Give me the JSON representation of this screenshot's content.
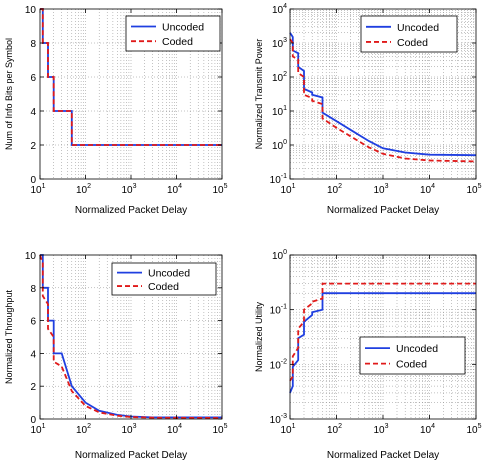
{
  "colors": {
    "uncoded": "#1f3fe0",
    "coded": "#e01a1a"
  },
  "chart_data": [
    {
      "type": "line",
      "xlabel": "Normalized Packet Delay",
      "ylabel": "Num of Info Bits per Symbol",
      "xscale": "log",
      "xlim": [
        10,
        100000
      ],
      "xticks": [
        10,
        100,
        1000,
        10000,
        100000
      ],
      "yscale": "linear",
      "ylim": [
        0,
        10
      ],
      "yticks": [
        0,
        2,
        4,
        6,
        8,
        10
      ],
      "legend": "top-right",
      "series": [
        {
          "name": "Uncoded",
          "style": "solid",
          "x": [
            10,
            11.5,
            11.5,
            15,
            15,
            20,
            20,
            30,
            30,
            50,
            50,
            100000
          ],
          "y": [
            10,
            10,
            8,
            8,
            6,
            6,
            4,
            4,
            4,
            4,
            2,
            2
          ]
        },
        {
          "name": "Coded",
          "style": "dashed",
          "x": [
            10,
            11.5,
            11.5,
            15,
            15,
            20,
            20,
            30,
            30,
            50,
            50,
            100000
          ],
          "y": [
            10,
            10,
            8,
            8,
            6,
            6,
            4,
            4,
            4,
            4,
            2,
            2
          ]
        }
      ]
    },
    {
      "type": "line",
      "xlabel": "Normalized Packet Delay",
      "ylabel": "Normalized Transmit Power",
      "xscale": "log",
      "xlim": [
        10,
        100000
      ],
      "xticks": [
        10,
        100,
        1000,
        10000,
        100000
      ],
      "yscale": "log",
      "ylim": [
        0.1,
        10000
      ],
      "yticks": [
        0.1,
        1,
        10,
        100,
        1000,
        10000
      ],
      "legend": "top-right",
      "series": [
        {
          "name": "Uncoded",
          "style": "solid",
          "x": [
            10,
            11.5,
            11.5,
            15,
            15,
            20,
            20,
            30,
            30,
            50,
            50,
            100,
            200,
            500,
            1000,
            3000,
            10000,
            100000
          ],
          "y": [
            2000,
            1500,
            600,
            500,
            200,
            150,
            45,
            35,
            30,
            25,
            9,
            5,
            2.8,
            1.3,
            0.8,
            0.6,
            0.52,
            0.5
          ]
        },
        {
          "name": "Coded",
          "style": "dashed",
          "x": [
            10,
            11.5,
            11.5,
            15,
            15,
            20,
            20,
            30,
            30,
            50,
            50,
            100,
            200,
            500,
            1000,
            3000,
            10000,
            100000
          ],
          "y": [
            1300,
            1000,
            400,
            330,
            130,
            100,
            30,
            24,
            20,
            16,
            6,
            3.2,
            1.8,
            0.85,
            0.55,
            0.4,
            0.35,
            0.33
          ]
        }
      ]
    },
    {
      "type": "line",
      "xlabel": "Normalized Packet Delay",
      "ylabel": "Normalized Throughput",
      "xscale": "log",
      "xlim": [
        10,
        100000
      ],
      "xticks": [
        10,
        100,
        1000,
        10000,
        100000
      ],
      "yscale": "linear",
      "ylim": [
        0,
        10
      ],
      "yticks": [
        0,
        2,
        4,
        6,
        8,
        10
      ],
      "legend": "top-right",
      "series": [
        {
          "name": "Uncoded",
          "style": "solid",
          "x": [
            10,
            11.5,
            11.5,
            15,
            15,
            20,
            20,
            30,
            50,
            100,
            200,
            500,
            1000,
            3000,
            100000
          ],
          "y": [
            10,
            10,
            8,
            8,
            6,
            6,
            4,
            4,
            2,
            1,
            0.5,
            0.25,
            0.15,
            0.1,
            0.1
          ]
        },
        {
          "name": "Coded",
          "style": "dashed",
          "x": [
            10,
            11.5,
            11.5,
            15,
            15,
            20,
            20,
            30,
            50,
            100,
            200,
            500,
            1000,
            3000,
            100000
          ],
          "y": [
            10,
            9.5,
            7.5,
            7,
            5.5,
            5,
            3.5,
            3.2,
            1.7,
            0.8,
            0.4,
            0.2,
            0.12,
            0.08,
            0.06
          ]
        }
      ]
    },
    {
      "type": "line",
      "xlabel": "Normalized Packet Delay",
      "ylabel": "Normalized Utility",
      "xscale": "log",
      "xlim": [
        10,
        100000
      ],
      "xticks": [
        10,
        100,
        1000,
        10000,
        100000
      ],
      "yscale": "log",
      "ylim": [
        0.001,
        1
      ],
      "yticks": [
        0.001,
        0.01,
        0.1,
        1
      ],
      "legend": "bottom-right",
      "series": [
        {
          "name": "Uncoded",
          "style": "solid",
          "x": [
            10,
            11.5,
            11.5,
            15,
            15,
            20,
            20,
            30,
            30,
            50,
            50,
            100000
          ],
          "y": [
            0.003,
            0.004,
            0.009,
            0.012,
            0.03,
            0.035,
            0.06,
            0.08,
            0.09,
            0.1,
            0.2,
            0.2
          ]
        },
        {
          "name": "Coded",
          "style": "dashed",
          "x": [
            10,
            11.5,
            11.5,
            15,
            15,
            20,
            20,
            30,
            30,
            50,
            50,
            100000
          ],
          "y": [
            0.005,
            0.006,
            0.014,
            0.02,
            0.045,
            0.06,
            0.1,
            0.13,
            0.14,
            0.16,
            0.3,
            0.3
          ]
        }
      ]
    }
  ]
}
